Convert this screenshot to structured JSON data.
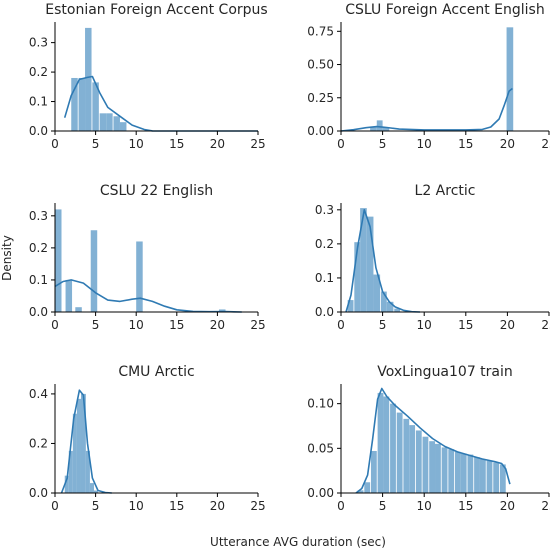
{
  "figure": {
    "ylabel": "Density",
    "xlabel": "Utterance AVG duration (sec)"
  },
  "chart_data": [
    {
      "type": "bar",
      "title": "Estonian Foreign Accent Corpus",
      "xlim": [
        0,
        25
      ],
      "ylim": [
        0,
        0.37
      ],
      "xticks": [
        "0",
        "5",
        "10",
        "15",
        "20",
        "25"
      ],
      "yticks": [
        {
          "value": 0.0,
          "label": "0.0"
        },
        {
          "value": 0.1,
          "label": "0.1"
        },
        {
          "value": 0.2,
          "label": "0.2"
        },
        {
          "value": 0.3,
          "label": "0.3"
        }
      ],
      "bins": [
        {
          "x0": 2.0,
          "x1": 2.8,
          "value": 0.18
        },
        {
          "x0": 2.9,
          "x1": 3.7,
          "value": 0.18
        },
        {
          "x0": 3.7,
          "x1": 4.5,
          "value": 0.35
        },
        {
          "x0": 4.6,
          "x1": 5.4,
          "value": 0.165
        },
        {
          "x0": 5.5,
          "x1": 6.3,
          "value": 0.06
        },
        {
          "x0": 6.3,
          "x1": 7.1,
          "value": 0.06
        },
        {
          "x0": 7.2,
          "x1": 8.0,
          "value": 0.05
        },
        {
          "x0": 8.0,
          "x1": 8.8,
          "value": 0.03
        }
      ],
      "kde": [
        [
          1.2,
          0.045
        ],
        [
          2,
          0.12
        ],
        [
          3,
          0.175
        ],
        [
          4,
          0.182
        ],
        [
          4.6,
          0.185
        ],
        [
          5.5,
          0.13
        ],
        [
          6.5,
          0.08
        ],
        [
          8,
          0.05
        ],
        [
          9.5,
          0.02
        ],
        [
          11,
          0.005
        ],
        [
          12,
          0.0005
        ],
        [
          25,
          0.0
        ]
      ]
    },
    {
      "type": "bar",
      "title": "CSLU Foreign Accent English",
      "xlim": [
        0,
        25
      ],
      "ylim": [
        0,
        0.82
      ],
      "xticks": [
        "0",
        "5",
        "10",
        "15",
        "20",
        "25"
      ],
      "yticks": [
        {
          "value": 0.0,
          "label": "0.00"
        },
        {
          "value": 0.25,
          "label": "0.25"
        },
        {
          "value": 0.5,
          "label": "0.50"
        },
        {
          "value": 0.75,
          "label": "0.75"
        }
      ],
      "bins": [
        {
          "x0": 3.5,
          "x1": 4.3,
          "value": 0.03
        },
        {
          "x0": 4.3,
          "x1": 5.0,
          "value": 0.08
        },
        {
          "x0": 5.0,
          "x1": 5.8,
          "value": 0.03
        },
        {
          "x0": 19.9,
          "x1": 20.7,
          "value": 0.78
        }
      ],
      "kde": [
        [
          0,
          0.0
        ],
        [
          1.5,
          0.01
        ],
        [
          3,
          0.025
        ],
        [
          4.3,
          0.033
        ],
        [
          5.5,
          0.026
        ],
        [
          7,
          0.014
        ],
        [
          10,
          0.008
        ],
        [
          13,
          0.008
        ],
        [
          15,
          0.008
        ],
        [
          17,
          0.012
        ],
        [
          18,
          0.03
        ],
        [
          19,
          0.09
        ],
        [
          19.6,
          0.19
        ],
        [
          20.2,
          0.3
        ],
        [
          20.6,
          0.32
        ]
      ]
    },
    {
      "type": "bar",
      "title": "CSLU 22 English",
      "xlim": [
        0,
        25
      ],
      "ylim": [
        0,
        0.34
      ],
      "xticks": [
        "0",
        "5",
        "10",
        "15",
        "20",
        "25"
      ],
      "yticks": [
        {
          "value": 0.0,
          "label": "0.0"
        },
        {
          "value": 0.1,
          "label": "0.1"
        },
        {
          "value": 0.2,
          "label": "0.2"
        },
        {
          "value": 0.3,
          "label": "0.3"
        }
      ],
      "bins": [
        {
          "x0": 0.0,
          "x1": 0.8,
          "value": 0.32
        },
        {
          "x0": 1.3,
          "x1": 2.1,
          "value": 0.1
        },
        {
          "x0": 2.5,
          "x1": 3.3,
          "value": 0.015
        },
        {
          "x0": 4.4,
          "x1": 5.2,
          "value": 0.255
        },
        {
          "x0": 10.0,
          "x1": 10.8,
          "value": 0.22
        },
        {
          "x0": 20.2,
          "x1": 21.0,
          "value": 0.008
        }
      ],
      "kde": [
        [
          0,
          0.08
        ],
        [
          1,
          0.095
        ],
        [
          2,
          0.1
        ],
        [
          3.5,
          0.09
        ],
        [
          5,
          0.06
        ],
        [
          6.5,
          0.037
        ],
        [
          8,
          0.033
        ],
        [
          9.5,
          0.04
        ],
        [
          10.5,
          0.043
        ],
        [
          12,
          0.033
        ],
        [
          13.5,
          0.018
        ],
        [
          15,
          0.007
        ],
        [
          17,
          0.002
        ],
        [
          19,
          0.001
        ],
        [
          21,
          0.0015
        ],
        [
          22,
          0.0005
        ],
        [
          23,
          0.0
        ]
      ]
    },
    {
      "type": "bar",
      "title": "L2 Arctic",
      "xlim": [
        0,
        25
      ],
      "ylim": [
        0,
        0.32
      ],
      "xticks": [
        "0",
        "5",
        "10",
        "15",
        "20",
        "25"
      ],
      "yticks": [
        {
          "value": 0.0,
          "label": "0.0"
        },
        {
          "value": 0.1,
          "label": "0.1"
        },
        {
          "value": 0.2,
          "label": "0.2"
        },
        {
          "value": 0.3,
          "label": "0.3"
        }
      ],
      "bins": [
        {
          "x0": 0.8,
          "x1": 1.5,
          "value": 0.035
        },
        {
          "x0": 1.6,
          "x1": 2.3,
          "value": 0.205
        },
        {
          "x0": 2.3,
          "x1": 3.1,
          "value": 0.305
        },
        {
          "x0": 3.1,
          "x1": 3.9,
          "value": 0.28
        },
        {
          "x0": 3.9,
          "x1": 4.7,
          "value": 0.11
        },
        {
          "x0": 4.8,
          "x1": 5.5,
          "value": 0.06
        },
        {
          "x0": 5.5,
          "x1": 6.3,
          "value": 0.03
        },
        {
          "x0": 6.4,
          "x1": 7.1,
          "value": 0.01
        }
      ],
      "kde": [
        [
          0.6,
          0.0
        ],
        [
          1.2,
          0.05
        ],
        [
          2.0,
          0.19
        ],
        [
          2.8,
          0.3
        ],
        [
          3.5,
          0.25
        ],
        [
          4.2,
          0.13
        ],
        [
          5,
          0.06
        ],
        [
          5.8,
          0.03
        ],
        [
          6.5,
          0.015
        ],
        [
          7.5,
          0.005
        ],
        [
          8.5,
          0.001
        ],
        [
          9.5,
          0.0
        ]
      ]
    },
    {
      "type": "bar",
      "title": "CMU Arctic",
      "xlim": [
        0,
        25
      ],
      "ylim": [
        0,
        0.44
      ],
      "xticks": [
        "0",
        "5",
        "10",
        "15",
        "20",
        "25"
      ],
      "yticks": [
        {
          "value": 0.0,
          "label": "0.0"
        },
        {
          "value": 0.2,
          "label": "0.2"
        },
        {
          "value": 0.4,
          "label": "0.4"
        }
      ],
      "bins": [
        {
          "x0": 1.2,
          "x1": 1.7,
          "value": 0.07
        },
        {
          "x0": 1.7,
          "x1": 2.2,
          "value": 0.17
        },
        {
          "x0": 2.2,
          "x1": 2.7,
          "value": 0.32
        },
        {
          "x0": 2.7,
          "x1": 3.2,
          "value": 0.38
        },
        {
          "x0": 3.2,
          "x1": 3.8,
          "value": 0.4
        },
        {
          "x0": 3.8,
          "x1": 4.3,
          "value": 0.17
        },
        {
          "x0": 4.3,
          "x1": 4.8,
          "value": 0.04
        },
        {
          "x0": 4.8,
          "x1": 5.3,
          "value": 0.01
        }
      ],
      "kde": [
        [
          0.8,
          0.0
        ],
        [
          1.5,
          0.06
        ],
        [
          2.3,
          0.3
        ],
        [
          3.0,
          0.415
        ],
        [
          3.5,
          0.395
        ],
        [
          4.0,
          0.2
        ],
        [
          4.6,
          0.06
        ],
        [
          5.3,
          0.01
        ],
        [
          6.2,
          0.002
        ],
        [
          7,
          0.0
        ]
      ]
    },
    {
      "type": "bar",
      "title": "VoxLingua107 train",
      "xlim": [
        0,
        25
      ],
      "ylim": [
        0,
        0.122
      ],
      "xticks": [
        "0",
        "5",
        "10",
        "15",
        "20",
        "25"
      ],
      "yticks": [
        {
          "value": 0.0,
          "label": "0.00"
        },
        {
          "value": 0.05,
          "label": "0.05"
        },
        {
          "value": 0.1,
          "label": "0.10"
        }
      ],
      "bins": [
        {
          "x0": 2.0,
          "x1": 2.7,
          "value": 0.003
        },
        {
          "x0": 2.8,
          "x1": 3.5,
          "value": 0.012
        },
        {
          "x0": 3.6,
          "x1": 4.3,
          "value": 0.047
        },
        {
          "x0": 4.4,
          "x1": 5.1,
          "value": 0.112
        },
        {
          "x0": 5.1,
          "x1": 5.8,
          "value": 0.108
        },
        {
          "x0": 5.9,
          "x1": 6.6,
          "value": 0.1
        },
        {
          "x0": 6.7,
          "x1": 7.4,
          "value": 0.09
        },
        {
          "x0": 7.5,
          "x1": 8.2,
          "value": 0.083
        },
        {
          "x0": 8.2,
          "x1": 8.9,
          "value": 0.076
        },
        {
          "x0": 9.0,
          "x1": 9.7,
          "value": 0.07
        },
        {
          "x0": 9.8,
          "x1": 10.5,
          "value": 0.063
        },
        {
          "x0": 10.6,
          "x1": 11.3,
          "value": 0.058
        },
        {
          "x0": 11.3,
          "x1": 12.0,
          "value": 0.055
        },
        {
          "x0": 12.1,
          "x1": 12.8,
          "value": 0.051
        },
        {
          "x0": 12.9,
          "x1": 13.6,
          "value": 0.049
        },
        {
          "x0": 13.7,
          "x1": 14.4,
          "value": 0.046
        },
        {
          "x0": 14.4,
          "x1": 15.1,
          "value": 0.044
        },
        {
          "x0": 15.2,
          "x1": 15.9,
          "value": 0.043
        },
        {
          "x0": 16.0,
          "x1": 16.7,
          "value": 0.04
        },
        {
          "x0": 16.7,
          "x1": 17.4,
          "value": 0.038
        },
        {
          "x0": 17.5,
          "x1": 18.2,
          "value": 0.036
        },
        {
          "x0": 18.3,
          "x1": 19.0,
          "value": 0.034
        },
        {
          "x0": 19.1,
          "x1": 19.8,
          "value": 0.032
        }
      ],
      "kde": [
        [
          1.8,
          0.0
        ],
        [
          2.5,
          0.005
        ],
        [
          3.2,
          0.02
        ],
        [
          3.8,
          0.06
        ],
        [
          4.4,
          0.105
        ],
        [
          4.9,
          0.117
        ],
        [
          5.5,
          0.108
        ],
        [
          6.5,
          0.098
        ],
        [
          8,
          0.086
        ],
        [
          9.5,
          0.073
        ],
        [
          11,
          0.061
        ],
        [
          12.5,
          0.052
        ],
        [
          14,
          0.046
        ],
        [
          15.5,
          0.042
        ],
        [
          17,
          0.038
        ],
        [
          18.5,
          0.035
        ],
        [
          19.3,
          0.033
        ],
        [
          19.8,
          0.027
        ],
        [
          20.3,
          0.01
        ]
      ]
    }
  ]
}
